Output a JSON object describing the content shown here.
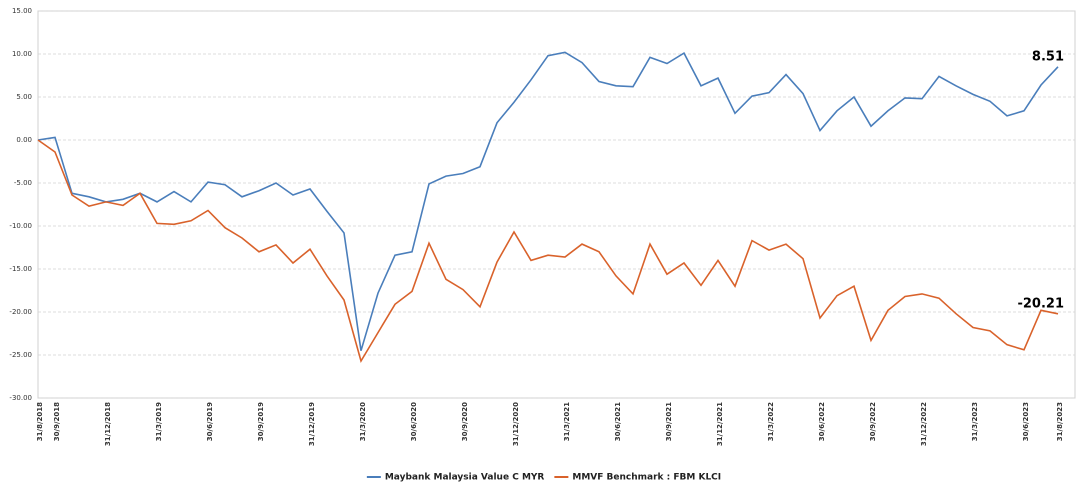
{
  "chart_data": {
    "type": "line",
    "categories": [
      "31/8/2018",
      "30/9/2018",
      null,
      null,
      "31/12/2018",
      null,
      null,
      "31/3/2019",
      null,
      null,
      "30/6/2019",
      null,
      null,
      "30/9/2019",
      null,
      null,
      "31/12/2019",
      null,
      null,
      "31/3/2020",
      null,
      null,
      "30/6/2020",
      null,
      null,
      "30/9/2020",
      null,
      null,
      "31/12/2020",
      null,
      null,
      "31/3/2021",
      null,
      null,
      "30/6/2021",
      null,
      null,
      "30/9/2021",
      null,
      null,
      "31/12/2021",
      null,
      null,
      "31/3/2022",
      null,
      null,
      "30/6/2022",
      null,
      null,
      "30/9/2022",
      null,
      null,
      "31/12/2022",
      null,
      null,
      "31/3/2023",
      null,
      null,
      "30/6/2023",
      null,
      "31/8/2023"
    ],
    "series": [
      {
        "name": "Maybank Malaysia Value C MYR",
        "color": "#4a7ebb",
        "values": [
          0,
          0.3,
          -6.2,
          -6.6,
          -7.2,
          -6.9,
          -6.2,
          -7.2,
          -6.0,
          -7.2,
          -4.9,
          -5.2,
          -6.6,
          -5.9,
          -5.0,
          -6.4,
          -5.7,
          -8.3,
          -10.8,
          -24.5,
          -17.8,
          -13.4,
          -13.0,
          -5.1,
          -4.2,
          -3.9,
          -3.1,
          2.0,
          4.4,
          7.0,
          9.8,
          10.2,
          9.0,
          6.8,
          6.3,
          6.2,
          9.6,
          8.9,
          10.1,
          6.3,
          7.2,
          3.1,
          5.1,
          5.5,
          7.6,
          5.4,
          1.1,
          3.4,
          5.0,
          1.6,
          3.4,
          4.9,
          4.8,
          7.4,
          6.3,
          5.3,
          4.5,
          2.8,
          3.4,
          6.4,
          8.51
        ]
      },
      {
        "name": "MMVF Benchmark : FBM KLCI",
        "color": "#d9622b",
        "values": [
          0,
          -1.4,
          -6.4,
          -7.7,
          -7.2,
          -7.6,
          -6.2,
          -9.7,
          -9.8,
          -9.4,
          -8.2,
          -10.2,
          -11.4,
          -13.0,
          -12.2,
          -14.3,
          -12.7,
          -15.8,
          -18.6,
          -25.7,
          -22.4,
          -19.1,
          -17.6,
          -12.0,
          -16.2,
          -17.4,
          -19.4,
          -14.2,
          -10.7,
          -14.0,
          -13.4,
          -13.6,
          -12.1,
          -13.0,
          -15.8,
          -17.9,
          -12.1,
          -15.6,
          -14.3,
          -16.9,
          -14.0,
          -17.0,
          -11.7,
          -12.8,
          -12.1,
          -13.8,
          -20.7,
          -18.1,
          -17.0,
          -23.3,
          -19.8,
          -18.2,
          -17.9,
          -18.4,
          -20.2,
          -21.8,
          -22.2,
          -23.8,
          -24.4,
          -19.8,
          -20.21
        ]
      }
    ],
    "ylim": [
      -30,
      15
    ],
    "yticks": [
      {
        "value": -30,
        "label": "-30.00"
      },
      {
        "value": -25,
        "label": "-25.00"
      },
      {
        "value": -20,
        "label": "-20.00"
      },
      {
        "value": -15,
        "label": "-15.00"
      },
      {
        "value": -10,
        "label": "-10.00"
      },
      {
        "value": -5,
        "label": "-5.00"
      },
      {
        "value": 0,
        "label": "0.00"
      },
      {
        "value": 5,
        "label": "5.00"
      },
      {
        "value": 10,
        "label": "10.00"
      },
      {
        "value": 15,
        "label": "15.00"
      }
    ],
    "grid": true,
    "end_labels": true,
    "legend": "bottom"
  }
}
